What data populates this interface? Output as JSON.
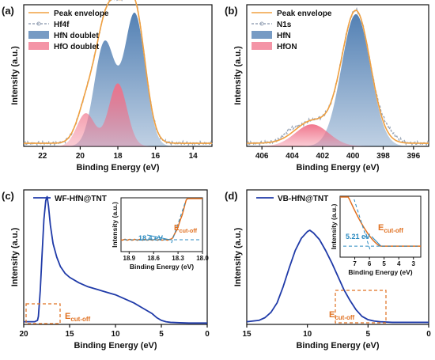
{
  "chart_data": [
    {
      "type": "area",
      "panel": "(a)",
      "xlabel": "Binding Energy (eV)",
      "ylabel": "Intensity (a.u.)",
      "xlim": [
        23,
        13
      ],
      "x_reversed": true,
      "xticks": [
        "22",
        "20",
        "18",
        "16",
        "14"
      ],
      "xtick_values": [
        22,
        20,
        18,
        16,
        14
      ],
      "legend_position": "top-left",
      "series": [
        {
          "name": "Peak envelope",
          "color": "#f0a040",
          "kind": "line",
          "peaks": [
            {
              "center": 17.1,
              "height": 0.84,
              "sigma": 0.55
            },
            {
              "center": 18.7,
              "height": 0.66,
              "sigma": 0.55
            },
            {
              "center": 18.0,
              "height": 0.4,
              "sigma": 0.48
            },
            {
              "center": 19.7,
              "height": 0.21,
              "sigma": 0.48
            }
          ],
          "baseline": 0.02
        },
        {
          "name": "Hf4f",
          "color": "#9aa6b8",
          "kind": "dashed-line",
          "noise": 0.012,
          "peaks": [
            {
              "center": 17.1,
              "height": 0.84,
              "sigma": 0.55
            },
            {
              "center": 18.7,
              "height": 0.66,
              "sigma": 0.55
            },
            {
              "center": 18.0,
              "height": 0.4,
              "sigma": 0.48
            },
            {
              "center": 19.7,
              "height": 0.21,
              "sigma": 0.48
            }
          ],
          "baseline": 0.02
        },
        {
          "name": "HfN doublet",
          "color": "#4a7ab0",
          "kind": "fill",
          "peaks": [
            {
              "center": 17.1,
              "height": 0.84,
              "sigma": 0.55
            },
            {
              "center": 18.7,
              "height": 0.66,
              "sigma": 0.55
            }
          ]
        },
        {
          "name": "HfO doublet",
          "color": "#f07088",
          "kind": "fill",
          "peaks": [
            {
              "center": 18.0,
              "height": 0.4,
              "sigma": 0.48
            },
            {
              "center": 19.7,
              "height": 0.21,
              "sigma": 0.48
            }
          ]
        }
      ]
    },
    {
      "type": "area",
      "panel": "(b)",
      "xlabel": "Binding Energy (eV)",
      "ylabel": "Intensity (a.u.)",
      "xlim": [
        407,
        395
      ],
      "x_reversed": true,
      "xticks": [
        "406",
        "404",
        "402",
        "400",
        "398",
        "396"
      ],
      "xtick_values": [
        406,
        404,
        402,
        400,
        398,
        396
      ],
      "legend_position": "top-left",
      "series": [
        {
          "name": "Peak envelope",
          "color": "#f0a040",
          "kind": "line",
          "peaks": [
            {
              "center": 399.8,
              "height": 0.84,
              "sigma": 0.95
            },
            {
              "center": 402.7,
              "height": 0.14,
              "sigma": 1.1
            }
          ],
          "baseline": 0.02
        },
        {
          "name": "N1s",
          "color": "#9aa6b8",
          "kind": "dashed-line",
          "noise": 0.012,
          "peaks": [
            {
              "center": 399.8,
              "height": 0.84,
              "sigma": 0.95
            },
            {
              "center": 402.7,
              "height": 0.14,
              "sigma": 1.1
            },
            {
              "center": 404.2,
              "height": 0.03,
              "sigma": 0.4
            },
            {
              "center": 397.6,
              "height": 0.04,
              "sigma": 0.5
            }
          ],
          "baseline": 0.02
        },
        {
          "name": "HfN",
          "color": "#4a7ab0",
          "kind": "fill",
          "peaks": [
            {
              "center": 399.8,
              "height": 0.84,
              "sigma": 0.95
            }
          ]
        },
        {
          "name": "HfON",
          "color": "#f07088",
          "kind": "fill",
          "peaks": [
            {
              "center": 402.7,
              "height": 0.14,
              "sigma": 1.1
            }
          ]
        }
      ]
    },
    {
      "type": "line",
      "panel": "(c)",
      "xlabel": "Binding Energy (eV)",
      "ylabel": "Intensity (a.u.)",
      "xlim": [
        20,
        0
      ],
      "x_reversed": true,
      "xticks": [
        "20",
        "15",
        "10",
        "5",
        "0"
      ],
      "xtick_values": [
        20,
        15,
        10,
        5,
        0
      ],
      "series": [
        {
          "name": "WF-HfN@TNT",
          "color": "#1f3aa8",
          "x": [
            20.0,
            19.5,
            18.8,
            18.5,
            18.4,
            18.2,
            18.0,
            17.8,
            17.6,
            17.45,
            17.3,
            17.1,
            16.8,
            16.4,
            16.0,
            15.5,
            15.0,
            14.0,
            13.0,
            12.0,
            11.0,
            10.0,
            9.0,
            8.0,
            7.0,
            6.0,
            5.5,
            5.0,
            4.5,
            4.0,
            3.0,
            2.0,
            1.0,
            0.0
          ],
          "y": [
            0.02,
            0.02,
            0.02,
            0.03,
            0.06,
            0.25,
            0.52,
            0.78,
            0.92,
            0.95,
            0.88,
            0.74,
            0.6,
            0.5,
            0.43,
            0.38,
            0.35,
            0.31,
            0.28,
            0.26,
            0.24,
            0.22,
            0.19,
            0.16,
            0.12,
            0.08,
            0.05,
            0.03,
            0.02,
            0.015,
            0.012,
            0.01,
            0.01,
            0.01
          ]
        }
      ],
      "annotations": [
        {
          "text_main": "E",
          "text_sub": "cut-off",
          "color": "#e07020"
        }
      ],
      "inset": {
        "xlabel": "Binding Energy (eV)",
        "ylabel": "Intensity (a.u.)",
        "xlim": [
          19.0,
          18.0
        ],
        "xticks": [
          "18.9",
          "18.6",
          "18.3",
          "18.0"
        ],
        "xtick_values": [
          18.9,
          18.6,
          18.3,
          18.0
        ],
        "label": "18.4 eV",
        "label_color": "#2a8ac0",
        "cutoff_label_main": "E",
        "cutoff_label_sub": "cut-off",
        "cutoff_color": "#e07020",
        "cutoff_value": 18.4,
        "curve_color": "#e07020"
      }
    },
    {
      "type": "line",
      "panel": "(d)",
      "xlabel": "Binding Energy (eV)",
      "ylabel": "Intensity (a.u.)",
      "xlim": [
        15,
        0
      ],
      "x_reversed": true,
      "xticks": [
        "15",
        "10",
        "5",
        "0"
      ],
      "xtick_values": [
        15,
        10,
        5,
        0
      ],
      "series": [
        {
          "name": "VB-HfN@TNT",
          "color": "#1f3aa8",
          "x": [
            15.0,
            14.0,
            13.5,
            13.0,
            12.5,
            12.0,
            11.5,
            11.0,
            10.5,
            10.0,
            9.8,
            9.5,
            9.0,
            8.5,
            8.0,
            7.5,
            7.0,
            6.5,
            6.0,
            5.5,
            5.0,
            4.5,
            4.0,
            3.0,
            2.0,
            1.0,
            0.0
          ],
          "y": [
            0.02,
            0.03,
            0.05,
            0.09,
            0.16,
            0.28,
            0.42,
            0.55,
            0.64,
            0.69,
            0.7,
            0.68,
            0.63,
            0.55,
            0.46,
            0.36,
            0.26,
            0.18,
            0.11,
            0.06,
            0.035,
            0.025,
            0.02,
            0.015,
            0.015,
            0.015,
            0.015
          ]
        }
      ],
      "annotations": [
        {
          "text_main": "E",
          "text_sub": "cut-off",
          "color": "#e07020"
        }
      ],
      "inset": {
        "xlabel": "Binding Energy (eV)",
        "ylabel": "Intensity (a.u.)",
        "xlim": [
          8,
          2.5
        ],
        "xticks": [
          "7",
          "6",
          "5",
          "4",
          "3"
        ],
        "xtick_values": [
          7,
          6,
          5,
          4,
          3
        ],
        "label": "5.21 eV",
        "label_color": "#2a8ac0",
        "cutoff_label_main": "E",
        "cutoff_label_sub": "cut-off",
        "cutoff_color": "#e07020",
        "cutoff_value": 5.21,
        "curve_color": "#e07020"
      }
    }
  ]
}
